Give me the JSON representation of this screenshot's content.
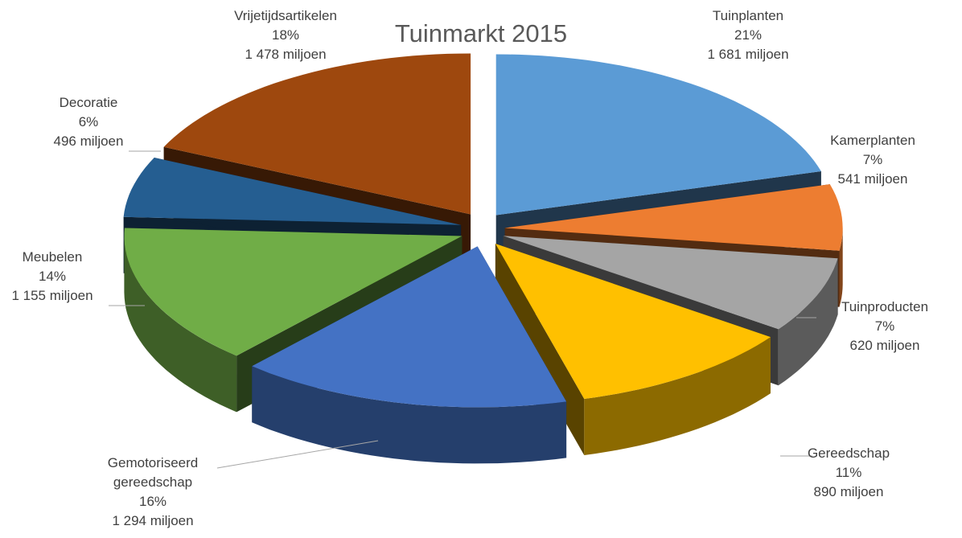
{
  "chart_data": {
    "type": "pie3d",
    "title": "Tuinmarkt 2015",
    "categories": [
      "Tuinplanten",
      "Kamerplanten",
      "Tuinproducten",
      "Gereedschap",
      "Gemotoriseerd gereedschap",
      "Meubelen",
      "Decoratie",
      "Vrijetijdsartikelen"
    ],
    "values": [
      1681,
      541,
      620,
      890,
      1294,
      1155,
      496,
      1478
    ],
    "value_labels": [
      "1 681 miljoen",
      "541 miljoen",
      "620 miljoen",
      "890 miljoen",
      "1 294 miljoen",
      "1 155 miljoen",
      "496 miljoen",
      "1 478 miljoen"
    ],
    "percent_values": [
      21,
      7,
      7,
      11,
      16,
      14,
      6,
      18
    ],
    "percent_labels": [
      "21%",
      "7%",
      "7%",
      "11%",
      "16%",
      "14%",
      "6%",
      "18%"
    ],
    "colors": [
      "#5b9bd5",
      "#ed7d31",
      "#a5a5a5",
      "#ffc000",
      "#4472c4",
      "#70ad47",
      "#255e91",
      "#9e480e"
    ]
  }
}
